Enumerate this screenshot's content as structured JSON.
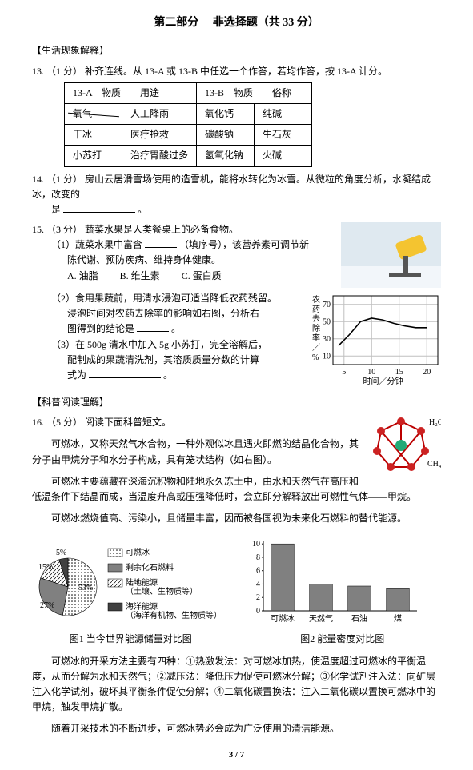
{
  "header": {
    "part": "第二部分",
    "subtitle": "非选择题（共 33 分）"
  },
  "section1": {
    "title": "【生活现象解释】"
  },
  "q13": {
    "num": "13.",
    "pts": "（1 分）",
    "text": "补齐连线。从 13-A 或 13-B 中任选一个作答，若均作答，按 13-A 计分。",
    "table": {
      "head_a": "13-A　物质——用途",
      "head_b": "13-B　物质——俗称",
      "rows": [
        [
          "氧气",
          "人工降雨",
          "氧化钙",
          "纯碱"
        ],
        [
          "干冰",
          "医疗抢救",
          "碳酸钠",
          "生石灰"
        ],
        [
          "小苏打",
          "治疗胃酸过多",
          "氢氧化钠",
          "火碱"
        ]
      ]
    }
  },
  "q14": {
    "num": "14.",
    "pts": "（1 分）",
    "text_a": "房山云居滑雪场使用的造雪机，能将水转化为冰雪。从微粒的角度分析，水凝结成冰，改变的",
    "text_b": "是",
    "text_c": "。"
  },
  "q15": {
    "num": "15.",
    "pts": "（3 分）",
    "intro": "蔬菜水果是人类餐桌上的必备食物。",
    "p1_a": "（1）蔬菜水果中富含",
    "p1_b": "（填序号），该营养素可调节新",
    "p1_c": "陈代谢、预防疾病、维持身体健康。",
    "opts": {
      "a": "A. 油脂",
      "b": "B. 维生素",
      "c": "C. 蛋白质"
    },
    "p2_a": "（2）食用果蔬前，用清水浸泡可适当降低农药残留。",
    "p2_b": "浸泡时间对农药去除率的影响如右图，分析右",
    "p2_c": "图得到的结论是",
    "p2_d": "。",
    "p3_a": "（3）在 500g 清水中加入 5g 小苏打，完全溶解后，",
    "p3_b": "配制成的果蔬清洗剂，其溶质质量分数的计算",
    "p3_c": "式为",
    "p3_d": "。"
  },
  "chart15": {
    "ylabel": [
      "农",
      "药",
      "去",
      "除",
      "率",
      "／",
      "%"
    ],
    "xlabel": "时间／分钟",
    "yticks": [
      10,
      30,
      50,
      70
    ],
    "xticks": [
      5,
      10,
      15,
      20
    ],
    "xlim": [
      3,
      22
    ],
    "ylim": [
      0,
      80
    ],
    "points": [
      [
        4,
        22
      ],
      [
        6,
        35
      ],
      [
        8,
        50
      ],
      [
        10,
        54
      ],
      [
        12,
        52
      ],
      [
        14,
        48
      ],
      [
        16,
        45
      ],
      [
        18,
        43
      ],
      [
        20,
        43
      ]
    ],
    "line_color": "#000",
    "grid_color": "#bfbfbf",
    "bg": "#fff",
    "axis_color": "#000",
    "font_size": 10
  },
  "section2": {
    "title": "【科普阅读理解】"
  },
  "q16": {
    "num": "16.",
    "pts": "（5 分）",
    "text": "阅读下面科普短文。"
  },
  "mol_labels": {
    "h2o": "H₂O",
    "ch4": "CH₄"
  },
  "passage": {
    "p1": "可燃冰，又称天然气水合物，一种外观似冰且遇火即燃的结晶化合物，其分子由甲烷分子和水分子构成，具有笼状结构（如右图）。",
    "p2": "可燃冰主要蕴藏在深海沉积物和陆地永久冻土中，由水和天然气在高压和低温条件下结晶而成，当温度升高或压强降低时，会立即分解释放出可燃性气体——甲烷。",
    "p3": "可燃冰燃烧值高、污染小，且储量丰富，因而被各国视为未来化石燃料的替代能源。"
  },
  "fig1": {
    "caption": "图1  当今世界能源储量对比图",
    "slices": [
      {
        "label": "可燃冰",
        "pct": 53,
        "color": "#ffffff",
        "hatch": "dots"
      },
      {
        "label": "剩余化石燃料",
        "pct": 27,
        "color": "#808080",
        "hatch": "solid"
      },
      {
        "label": "陆地能源\n（土壤、生物质等）",
        "pct": 15,
        "color": "#ffffff",
        "hatch": "diag"
      },
      {
        "label": "海洋能源\n（海洋有机物、生物质等）",
        "pct": 5,
        "color": "#404040",
        "hatch": "solid"
      }
    ],
    "pct_labels": [
      "5%",
      "15%",
      "27%",
      "53%"
    ]
  },
  "fig2": {
    "caption": "图2  能量密度对比图",
    "categories": [
      "可燃冰",
      "天然气",
      "石油",
      "煤"
    ],
    "values": [
      10,
      4,
      3.7,
      3.3
    ],
    "bar_color": "#808080",
    "yticks": [
      0,
      2,
      4,
      6,
      8,
      10
    ],
    "ylim": [
      0,
      10.5
    ]
  },
  "passage2": {
    "p4a": "可燃冰的开采方法主要有四种：①热激发法：对可燃冰加热，使温度超过可燃冰的平衡温度，从而分解为水和天然气；②减压法：降低压力促使可燃冰分解；③化学试剂注入法：向矿层注入化学试剂，破坏其平衡条件促使分解；④二氧化碳置换法：注入二氧化碳以置换可燃冰中的甲烷，触发甲烷扩散。",
    "p5": "随着开采技术的不断进步，可燃冰势必会成为广泛使用的清洁能源。"
  },
  "footer": "3 / 7"
}
